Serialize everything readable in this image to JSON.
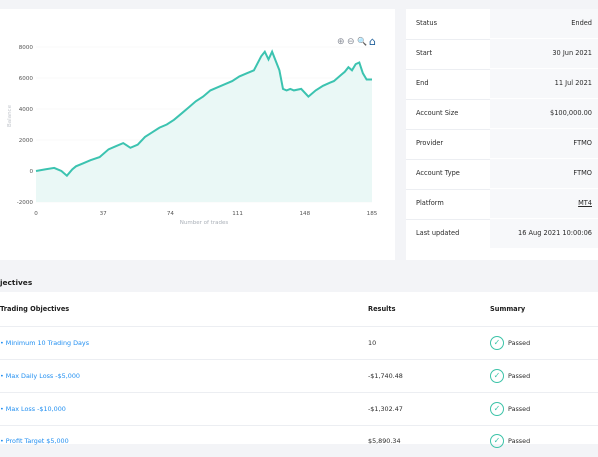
{
  "chart_data": {
    "type": "area",
    "xlabel": "Number of trades",
    "ylabel": "Balance",
    "x_ticks": [
      "0",
      "37",
      "74",
      "111",
      "148",
      "185"
    ],
    "y_ticks": [
      "8000",
      "6000",
      "4000",
      "2000",
      "0",
      "-2000"
    ],
    "xlim": [
      0,
      185
    ],
    "ylim": [
      -2000,
      8000
    ],
    "line_color": "#3cc3b0",
    "fill_color": "#eaf8f6",
    "series": [
      {
        "x": [
          0,
          5,
          10,
          14,
          17,
          20,
          22,
          26,
          30,
          35,
          40,
          44,
          48,
          52,
          56,
          60,
          64,
          68,
          72,
          76,
          80,
          84,
          88,
          92,
          96,
          100,
          104,
          108,
          112,
          116,
          120,
          124,
          126,
          128,
          130,
          134,
          136,
          138,
          140,
          142,
          146,
          150,
          154,
          158,
          162,
          164,
          166,
          168,
          170,
          172,
          174,
          176,
          178,
          180,
          182,
          185
        ],
        "y": [
          0,
          100,
          200,
          0,
          -300,
          100,
          300,
          500,
          700,
          900,
          1400,
          1600,
          1800,
          1500,
          1700,
          2200,
          2500,
          2800,
          3000,
          3300,
          3700,
          4100,
          4500,
          4800,
          5200,
          5400,
          5600,
          5800,
          6100,
          6300,
          6500,
          7400,
          7700,
          7200,
          7700,
          6500,
          5300,
          5200,
          5300,
          5200,
          5300,
          4800,
          5200,
          5500,
          5700,
          5800,
          6000,
          6200,
          6400,
          6700,
          6500,
          6900,
          7000,
          6300,
          5900,
          5900
        ]
      }
    ]
  },
  "chart_tools": {
    "zoom_in_icon": "zoom-in-icon",
    "zoom_out_icon": "zoom-out-icon",
    "search_icon": "search-icon",
    "home_icon": "home-icon",
    "zoom_in": "⊕",
    "zoom_out": "⊖",
    "search": "🔍",
    "home": "⌂"
  },
  "info": [
    {
      "label": "Status",
      "value": "Ended"
    },
    {
      "label": "Start",
      "value": "30 Jun 2021"
    },
    {
      "label": "End",
      "value": "11 Jul 2021"
    },
    {
      "label": "Account Size",
      "value": "$100,000.00"
    },
    {
      "label": "Provider",
      "value": "FTMO"
    },
    {
      "label": "Account Type",
      "value": "FTMO"
    },
    {
      "label": "Platform",
      "value": "MT4"
    },
    {
      "label": "Last updated",
      "value": "16 Aug 2021 10:00:06"
    }
  ],
  "objectives": {
    "section_title": "jectives",
    "headers": {
      "objectives": "Trading Objectives",
      "results": "Results",
      "summary": "Summary"
    },
    "rows": [
      {
        "name": "• Minimum 10 Trading Days",
        "result": "10",
        "summary": "Passed"
      },
      {
        "name": "• Max Daily Loss -$5,000",
        "result": "-$1,740.48",
        "summary": "Passed"
      },
      {
        "name": "• Max Loss -$10,000",
        "result": "-$1,302.47",
        "summary": "Passed"
      },
      {
        "name": "• Profit Target $5,000",
        "result": "$5,890.34",
        "summary": "Passed"
      }
    ]
  }
}
